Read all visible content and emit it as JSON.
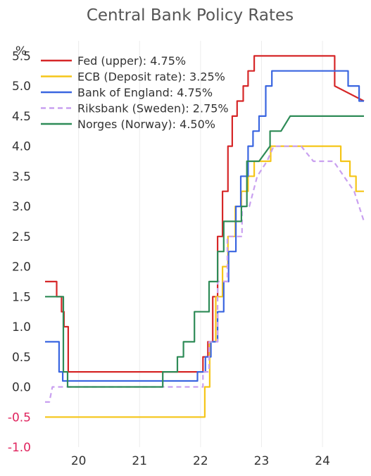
{
  "chart_data": {
    "type": "line",
    "title": "Central Bank Policy Rates",
    "ylabel": "%",
    "xlabel": "",
    "ylim": [
      -1.0,
      5.75
    ],
    "xlim": [
      2019.45,
      2024.68
    ],
    "y_ticks": [
      "5.5",
      "5.0",
      "4.5",
      "4.0",
      "3.5",
      "3.0",
      "2.5",
      "2.0",
      "1.5",
      "1.0",
      "0.5",
      "0.0",
      "-0.5",
      "-1.0"
    ],
    "y_tick_values": [
      5.5,
      5.0,
      4.5,
      4.0,
      3.5,
      3.0,
      2.5,
      2.0,
      1.5,
      1.0,
      0.5,
      0.0,
      -0.5,
      -1.0
    ],
    "x_ticks": [
      "20",
      "21",
      "22",
      "23",
      "24"
    ],
    "x_tick_values": [
      2020.0,
      2021.0,
      2022.0,
      2023.0,
      2024.0
    ],
    "grid": "vertical",
    "legend_position": "top-left",
    "series": [
      {
        "name": "Fed (upper): 4.75%",
        "color": "#d62728",
        "dash": false,
        "x": [
          2019.45,
          2019.64,
          2019.64,
          2019.72,
          2019.72,
          2019.76,
          2019.76,
          2019.83,
          2019.83,
          2020.17,
          2020.17,
          2022.04,
          2022.04,
          2022.12,
          2022.12,
          2022.2,
          2022.2,
          2022.28,
          2022.28,
          2022.36,
          2022.36,
          2022.45,
          2022.45,
          2022.52,
          2022.52,
          2022.6,
          2022.6,
          2022.7,
          2022.7,
          2022.78,
          2022.78,
          2022.88,
          2022.88,
          2022.96,
          2022.96,
          2023.07,
          2023.07,
          2023.17,
          2023.17,
          2023.32,
          2023.32,
          2023.57,
          2023.57,
          2024.2,
          2024.2,
          2024.68
        ],
        "y": [
          1.75,
          1.75,
          1.5,
          1.5,
          1.25,
          1.25,
          1.0,
          1.0,
          0.25,
          0.25,
          0.25,
          0.25,
          0.5,
          0.5,
          0.75,
          0.75,
          1.5,
          1.5,
          2.5,
          2.5,
          3.25,
          3.25,
          4.0,
          4.0,
          4.5,
          4.5,
          4.75,
          4.75,
          5.0,
          5.0,
          5.25,
          5.25,
          5.5,
          5.5,
          5.5,
          5.5,
          5.5,
          5.5,
          5.5,
          5.5,
          5.5,
          5.5,
          5.5,
          5.5,
          5.0,
          4.75
        ]
      },
      {
        "name": "ECB (Deposit rate): 3.25%",
        "color": "#f5c518",
        "dash": false,
        "x": [
          2019.45,
          2019.72,
          2019.72,
          2022.07,
          2022.07,
          2022.15,
          2022.15,
          2022.25,
          2022.25,
          2022.36,
          2022.36,
          2022.45,
          2022.45,
          2022.57,
          2022.57,
          2022.67,
          2022.67,
          2022.78,
          2022.78,
          2022.88,
          2022.88,
          2023.0,
          2023.0,
          2023.15,
          2023.15,
          2023.32,
          2023.32,
          2024.3,
          2024.3,
          2024.45,
          2024.45,
          2024.55,
          2024.55,
          2024.68
        ],
        "y": [
          -0.5,
          -0.5,
          -0.5,
          -0.5,
          0.0,
          0.0,
          0.75,
          0.75,
          1.5,
          1.5,
          2.0,
          2.0,
          2.5,
          2.5,
          3.0,
          3.0,
          3.25,
          3.25,
          3.5,
          3.5,
          3.75,
          3.75,
          3.75,
          3.75,
          4.0,
          4.0,
          4.0,
          4.0,
          3.75,
          3.75,
          3.5,
          3.5,
          3.25,
          3.25
        ]
      },
      {
        "name": "Bank of England: 4.75%",
        "color": "#3a66e0",
        "dash": false,
        "x": [
          2019.45,
          2019.68,
          2019.68,
          2019.74,
          2019.74,
          2021.95,
          2021.95,
          2022.08,
          2022.08,
          2022.17,
          2022.17,
          2022.28,
          2022.28,
          2022.38,
          2022.38,
          2022.46,
          2022.46,
          2022.58,
          2022.58,
          2022.66,
          2022.66,
          2022.78,
          2022.78,
          2022.86,
          2022.86,
          2022.96,
          2022.96,
          2023.07,
          2023.07,
          2023.17,
          2023.17,
          2024.03,
          2024.03,
          2024.42,
          2024.42,
          2024.6,
          2024.6,
          2024.68
        ],
        "y": [
          0.75,
          0.75,
          0.25,
          0.25,
          0.1,
          0.1,
          0.25,
          0.25,
          0.5,
          0.5,
          0.75,
          0.75,
          1.25,
          1.25,
          1.75,
          1.75,
          2.25,
          2.25,
          3.0,
          3.0,
          3.5,
          3.5,
          4.0,
          4.0,
          4.25,
          4.25,
          4.5,
          4.5,
          5.0,
          5.0,
          5.25,
          5.25,
          5.25,
          5.25,
          5.0,
          5.0,
          4.75,
          4.75
        ]
      },
      {
        "name": "Riksbank (Sweden): 2.75%",
        "color": "#c9a0f0",
        "dash": true,
        "x": [
          2019.45,
          2019.52,
          2019.52,
          2019.57,
          2019.57,
          2022.04,
          2022.04,
          2022.14,
          2022.14,
          2022.28,
          2022.28,
          2022.44,
          2022.44,
          2022.56,
          2022.56,
          2022.68,
          2022.68,
          2022.8,
          2022.8,
          2022.93,
          2022.93,
          2023.09,
          2023.09,
          2023.2,
          2023.2,
          2023.47,
          2023.47,
          2023.65,
          2023.65,
          2023.85,
          2023.85,
          2024.18,
          2024.18,
          2024.35,
          2024.35,
          2024.52,
          2024.52,
          2024.68
        ],
        "y": [
          -0.25,
          -0.25,
          -0.25,
          0.0,
          0.0,
          0.0,
          0.25,
          0.25,
          0.75,
          0.75,
          1.75,
          1.75,
          2.5,
          2.5,
          2.5,
          2.5,
          3.0,
          3.0,
          3.0,
          3.5,
          3.5,
          3.75,
          3.75,
          4.0,
          4.0,
          4.0,
          4.0,
          4.0,
          4.0,
          3.75,
          3.75,
          3.75,
          3.75,
          3.5,
          3.5,
          3.25,
          3.25,
          2.75
        ]
      },
      {
        "name": "Norges (Norway): 4.50%",
        "color": "#2e8b57",
        "dash": false,
        "x": [
          2019.45,
          2019.66,
          2019.66,
          2019.75,
          2019.75,
          2019.82,
          2019.82,
          2020.07,
          2020.07,
          2021.2,
          2021.2,
          2021.38,
          2021.38,
          2021.62,
          2021.62,
          2021.72,
          2021.72,
          2021.9,
          2021.9,
          2022.05,
          2022.05,
          2022.14,
          2022.14,
          2022.28,
          2022.28,
          2022.38,
          2022.38,
          2022.48,
          2022.48,
          2022.67,
          2022.67,
          2022.76,
          2022.76,
          2022.96,
          2022.96,
          2023.14,
          2023.14,
          2023.32,
          2023.32,
          2023.47,
          2023.47,
          2024.68
        ],
        "y": [
          1.5,
          1.5,
          1.5,
          1.5,
          0.25,
          0.25,
          0.0,
          0.0,
          0.0,
          0.0,
          0.0,
          0.0,
          0.25,
          0.25,
          0.5,
          0.5,
          0.75,
          0.75,
          1.25,
          1.25,
          1.25,
          1.25,
          1.75,
          1.75,
          2.25,
          2.25,
          2.75,
          2.75,
          2.75,
          2.75,
          3.0,
          3.0,
          3.75,
          3.75,
          3.75,
          4.0,
          4.25,
          4.25,
          4.25,
          4.5,
          4.5,
          4.5
        ]
      }
    ]
  }
}
